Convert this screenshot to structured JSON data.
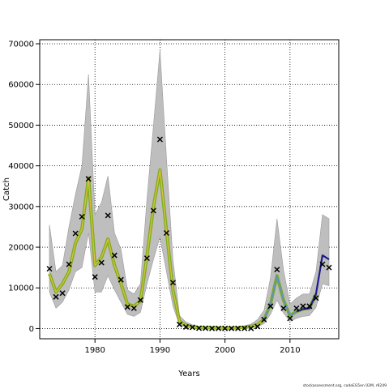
{
  "footer_text": "stockassessment.org, codeEG5en 02M, r9249",
  "chart_data": {
    "type": "line",
    "title": "",
    "xlabel": "Years",
    "ylabel": "Catch",
    "xlim": [
      1971.5,
      2017.5
    ],
    "ylim": [
      -2500,
      71000
    ],
    "x_ticks": [
      1980,
      1990,
      2000,
      2010
    ],
    "y_ticks": [
      0,
      10000,
      20000,
      30000,
      40000,
      50000,
      60000,
      70000
    ],
    "grid": true,
    "colors": {
      "band": "#bebebe",
      "band_edge": "#9a9a9a",
      "line_green": "#7dad1e",
      "line_olive": "#d7bf3a",
      "line_blue": "#5b8fd1",
      "line_navy": "#1f1a8f",
      "observed": "#000000"
    },
    "x": [
      1973,
      1974,
      1975,
      1976,
      1977,
      1978,
      1979,
      1980,
      1981,
      1982,
      1983,
      1984,
      1985,
      1986,
      1987,
      1988,
      1989,
      1990,
      1991,
      1992,
      1993,
      1994,
      1995,
      1996,
      1997,
      1998,
      1999,
      2000,
      2001,
      2002,
      2003,
      2004,
      2005,
      2006,
      2007,
      2008,
      2009,
      2010,
      2011,
      2012,
      2013,
      2014,
      2015,
      2016
    ],
    "fitted": [
      13500,
      9000,
      11000,
      14000,
      21000,
      24500,
      37000,
      15500,
      17500,
      22000,
      15500,
      11000,
      6000,
      5500,
      6800,
      18000,
      30000,
      39000,
      24000,
      9500,
      1800,
      800,
      400,
      200,
      200,
      200,
      150,
      150,
      150,
      200,
      300,
      500,
      1000,
      2200,
      6000,
      13000,
      7000,
      3200,
      4200,
      4800,
      5000,
      8500,
      18000,
      17000
    ],
    "band_upper": [
      25500,
      14000,
      15500,
      25000,
      33000,
      40000,
      62500,
      28000,
      31000,
      37500,
      23500,
      19500,
      9500,
      8500,
      11000,
      32000,
      50000,
      68500,
      42000,
      17000,
      3200,
      1600,
      900,
      500,
      450,
      400,
      350,
      350,
      350,
      500,
      700,
      1100,
      2200,
      4500,
      12500,
      27000,
      14500,
      6000,
      7500,
      8500,
      8500,
      14000,
      28000,
      27000
    ],
    "band_lower": [
      9000,
      5000,
      6500,
      9500,
      14000,
      15000,
      23500,
      9000,
      9000,
      13000,
      9500,
      6500,
      3500,
      3000,
      4000,
      11000,
      17000,
      22500,
      14000,
      5500,
      900,
      400,
      150,
      80,
      60,
      60,
      50,
      50,
      50,
      70,
      100,
      200,
      450,
      1200,
      3500,
      7000,
      3800,
      1800,
      2500,
      3000,
      3200,
      5200,
      11000,
      10500
    ],
    "series": [
      {
        "name": "",
        "color_key": "line_green",
        "x_range": [
          1973,
          2014
        ]
      },
      {
        "name": "",
        "color_key": "line_olive",
        "x_range": [
          1973,
          2014
        ]
      },
      {
        "name": "",
        "color_key": "line_blue",
        "x_range": [
          2006,
          2016
        ]
      },
      {
        "name": "",
        "color_key": "line_navy",
        "x_range": [
          2011,
          2016
        ]
      }
    ],
    "observed": [
      14700,
      7800,
      8700,
      15800,
      23400,
      27500,
      36800,
      12700,
      16200,
      27800,
      18000,
      12000,
      5300,
      5000,
      7000,
      17300,
      29000,
      46500,
      23500,
      11300,
      1000,
      400,
      300,
      100,
      100,
      50,
      50,
      50,
      50,
      50,
      50,
      50,
      500,
      2200,
      5500,
      14500,
      5000,
      2500,
      5000,
      5500,
      5500,
      7500,
      15800,
      15000
    ]
  }
}
